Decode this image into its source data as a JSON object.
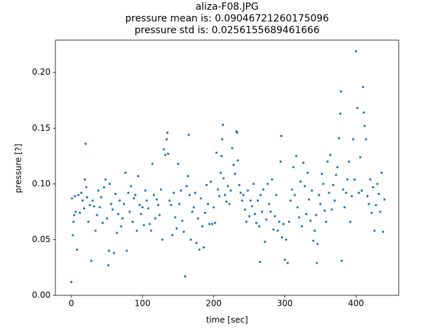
{
  "chart_data": {
    "type": "scatter",
    "title_lines": [
      "aliza-F08.JPG",
      "pressure mean is: 0.09046721260175096",
      "pressure std is: 0.0256155689461666"
    ],
    "xlabel": "time [sec]",
    "ylabel": "pressure [?]",
    "color": "#1f77b4",
    "xlim": [
      -22.4,
      460
    ],
    "ylim": [
      0,
      0.229
    ],
    "xticks": [
      0,
      100,
      200,
      300,
      400
    ],
    "yticks": [
      {
        "value": 0,
        "label": "0.00"
      },
      {
        "value": 0.05,
        "label": "0.05"
      },
      {
        "value": 0.1,
        "label": "0.10"
      },
      {
        "value": 0.15,
        "label": "0.15"
      },
      {
        "value": 0.2,
        "label": "0.20"
      }
    ],
    "x": [
      0,
      1,
      2,
      3,
      4,
      5,
      6,
      8,
      10,
      12,
      14,
      16,
      18,
      19,
      20,
      21,
      22,
      24,
      26,
      28,
      30,
      32,
      34,
      36,
      38,
      40,
      42,
      44,
      46,
      48,
      50,
      52,
      53,
      54,
      56,
      58,
      60,
      62,
      64,
      66,
      68,
      70,
      72,
      74,
      76,
      78,
      80,
      82,
      84,
      86,
      88,
      90,
      92,
      94,
      96,
      98,
      100,
      102,
      104,
      106,
      108,
      110,
      112,
      114,
      116,
      118,
      120,
      122,
      124,
      126,
      128,
      130,
      132,
      134,
      135,
      136,
      138,
      140,
      142,
      144,
      146,
      148,
      150,
      152,
      154,
      156,
      158,
      160,
      162,
      164,
      165,
      166,
      168,
      170,
      172,
      174,
      176,
      178,
      180,
      182,
      184,
      186,
      188,
      190,
      192,
      194,
      196,
      198,
      200,
      202,
      204,
      206,
      208,
      210,
      211,
      212,
      213,
      214,
      216,
      218,
      220,
      222,
      224,
      226,
      228,
      230,
      232,
      233,
      234,
      236,
      238,
      240,
      242,
      244,
      246,
      248,
      250,
      252,
      254,
      256,
      258,
      260,
      262,
      264,
      265,
      266,
      268,
      270,
      272,
      274,
      276,
      278,
      280,
      282,
      284,
      286,
      288,
      290,
      292,
      294,
      295,
      296,
      298,
      300,
      302,
      304,
      306,
      308,
      310,
      312,
      314,
      316,
      318,
      320,
      322,
      324,
      326,
      328,
      330,
      332,
      334,
      336,
      338,
      340,
      342,
      344,
      345,
      346,
      348,
      350,
      352,
      354,
      356,
      358,
      360,
      362,
      364,
      366,
      368,
      370,
      372,
      374,
      376,
      378,
      379,
      380,
      382,
      384,
      386,
      388,
      390,
      392,
      394,
      396,
      398,
      400,
      402,
      404,
      406,
      408,
      410,
      411,
      412,
      414,
      416,
      418,
      420,
      422,
      424,
      426,
      428,
      430,
      432,
      434,
      436,
      438,
      440
    ],
    "values": [
      0.012,
      0.087,
      0.054,
      0.066,
      0.072,
      0.089,
      0.075,
      0.041,
      0.09,
      0.074,
      0.092,
      0.085,
      0.078,
      0.104,
      0.136,
      0.097,
      0.088,
      0.066,
      0.081,
      0.031,
      0.085,
      0.08,
      0.058,
      0.072,
      0.094,
      0.079,
      0.088,
      0.065,
      0.097,
      0.104,
      0.069,
      0.027,
      0.04,
      0.1,
      0.082,
      0.077,
      0.038,
      0.091,
      0.056,
      0.073,
      0.085,
      0.062,
      0.069,
      0.082,
      0.11,
      0.04,
      0.092,
      0.075,
      0.098,
      0.066,
      0.087,
      0.09,
      0.058,
      0.107,
      0.081,
      0.073,
      0.079,
      0.063,
      0.094,
      0.085,
      0.078,
      0.064,
      0.058,
      0.118,
      0.09,
      0.069,
      0.086,
      0.081,
      0.072,
      0.095,
      0.05,
      0.131,
      0.126,
      0.14,
      0.146,
      0.127,
      0.085,
      0.081,
      0.054,
      0.092,
      0.07,
      0.06,
      0.118,
      0.082,
      0.094,
      0.067,
      0.057,
      0.017,
      0.098,
      0.107,
      0.144,
      0.09,
      0.05,
      0.075,
      0.079,
      0.092,
      0.047,
      0.069,
      0.041,
      0.087,
      0.062,
      0.043,
      0.074,
      0.099,
      0.082,
      0.064,
      0.102,
      0.064,
      0.079,
      0.065,
      0.128,
      0.095,
      0.089,
      0.11,
      0.125,
      0.14,
      0.153,
      0.105,
      0.09,
      0.084,
      0.098,
      0.082,
      0.094,
      0.132,
      0.117,
      0.109,
      0.147,
      0.146,
      0.121,
      0.099,
      0.092,
      0.085,
      0.09,
      0.077,
      0.066,
      0.094,
      0.071,
      0.085,
      0.08,
      0.1,
      0.073,
      0.065,
      0.085,
      0.062,
      0.03,
      0.09,
      0.075,
      0.095,
      0.048,
      0.068,
      0.1,
      0.082,
      0.075,
      0.104,
      0.059,
      0.071,
      0.09,
      0.058,
      0.066,
      0.12,
      0.143,
      0.052,
      0.064,
      0.032,
      0.05,
      0.029,
      0.066,
      0.085,
      0.095,
      0.115,
      0.09,
      0.125,
      0.079,
      0.07,
      0.102,
      0.062,
      0.119,
      0.098,
      0.073,
      0.11,
      0.086,
      0.067,
      0.094,
      0.049,
      0.058,
      0.072,
      0.029,
      0.046,
      0.09,
      0.082,
      0.109,
      0.1,
      0.076,
      0.066,
      0.12,
      0.092,
      0.126,
      0.077,
      0.099,
      0.085,
      0.108,
      0.115,
      0.141,
      0.163,
      0.183,
      0.031,
      0.095,
      0.079,
      0.092,
      0.104,
      0.12,
      0.066,
      0.089,
      0.14,
      0.104,
      0.219,
      0.168,
      0.092,
      0.124,
      0.094,
      0.187,
      0.164,
      0.152,
      0.14,
      0.089,
      0.082,
      0.104,
      0.074,
      0.097,
      0.058,
      0.081,
      0.1,
      0.091,
      0.075,
      0.11,
      0.057,
      0.086
    ]
  }
}
